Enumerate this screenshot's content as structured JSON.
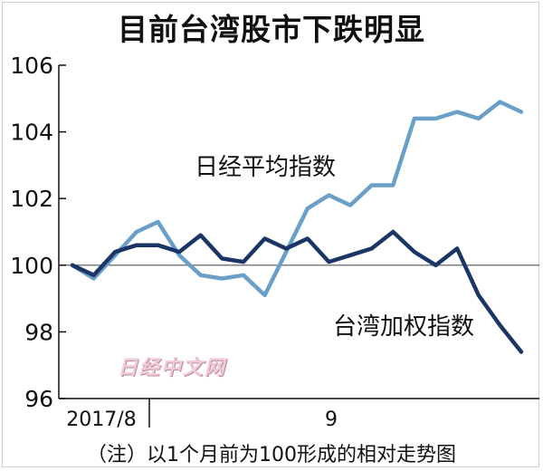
{
  "chart_data": {
    "type": "line",
    "title": "目前台湾股市下跌明显",
    "xlabel": "",
    "ylabel": "",
    "ylim": [
      96,
      106
    ],
    "yticks": [
      96,
      98,
      100,
      102,
      104,
      106
    ],
    "x_tick_labels": [
      "2017/8",
      "9"
    ],
    "baseline": 100,
    "grid": false,
    "series": [
      {
        "name": "日经平均指数",
        "color": "#6a9fc8",
        "values": [
          100,
          99.6,
          100.3,
          101.0,
          101.3,
          100.3,
          99.7,
          99.6,
          99.7,
          99.1,
          100.4,
          101.7,
          102.1,
          101.8,
          102.4,
          102.4,
          104.4,
          104.4,
          104.6,
          104.4,
          104.9,
          104.6
        ]
      },
      {
        "name": "台湾加权指数",
        "color": "#1a3566",
        "values": [
          100,
          99.7,
          100.4,
          100.6,
          100.6,
          100.4,
          100.9,
          100.2,
          100.1,
          100.8,
          100.5,
          100.8,
          100.1,
          100.3,
          100.5,
          101.0,
          100.4,
          100.0,
          100.5,
          99.1,
          98.2,
          97.4
        ]
      }
    ],
    "footnote": "（注）以1个月前为100形成的相对走势图"
  },
  "watermark": "日经中文网",
  "colors": {
    "axis": "#111111",
    "baseline": "#555555",
    "background": "#ffffff"
  }
}
